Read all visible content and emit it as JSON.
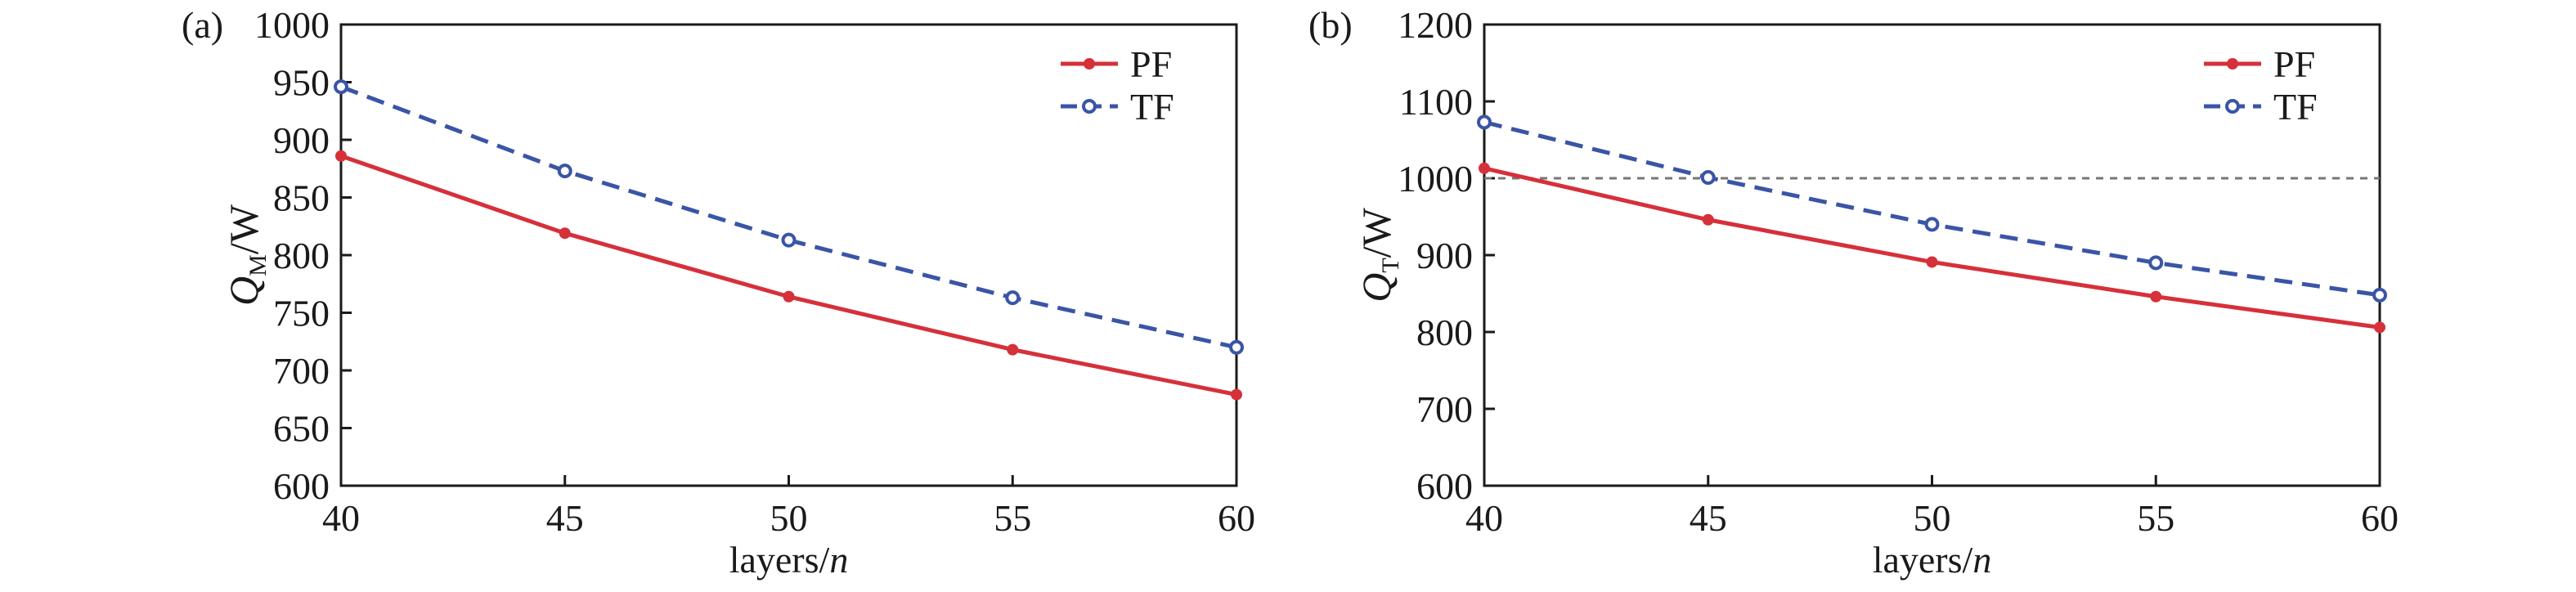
{
  "colors": {
    "pf": "#d6303a",
    "tf": "#3a55a6",
    "axis": "#1a1a1a",
    "reference_line": "#777777"
  },
  "chart_data": [
    {
      "type": "line",
      "panel_label": "(a)",
      "x": [
        40,
        45,
        50,
        55,
        60
      ],
      "xlim": [
        40,
        60
      ],
      "ylim": [
        600,
        1000
      ],
      "xticks": [
        "40",
        "45",
        "50",
        "55",
        "60"
      ],
      "yticks": [
        "600",
        "650",
        "700",
        "750",
        "800",
        "850",
        "900",
        "950",
        "1000"
      ],
      "xlabel": {
        "main": "layers/",
        "var": "n"
      },
      "ylabel": {
        "main": "Q",
        "sub": "M",
        "unit": "/W"
      },
      "legend_position": "top-right",
      "grid": false,
      "series": [
        {
          "name": "PF",
          "values": [
            886,
            819,
            764,
            718,
            679
          ],
          "style": "solid",
          "marker": "filled-circle"
        },
        {
          "name": "TF",
          "values": [
            946,
            873,
            813,
            763,
            720
          ],
          "style": "dashed",
          "marker": "open-circle"
        }
      ]
    },
    {
      "type": "line",
      "panel_label": "(b)",
      "x": [
        40,
        45,
        50,
        55,
        60
      ],
      "xlim": [
        40,
        60
      ],
      "ylim": [
        600,
        1200
      ],
      "xticks": [
        "40",
        "45",
        "50",
        "55",
        "60"
      ],
      "yticks": [
        "600",
        "700",
        "800",
        "900",
        "1000",
        "1100",
        "1200"
      ],
      "xlabel": {
        "main": "layers/",
        "var": "n"
      },
      "ylabel": {
        "main": "Q",
        "sub": "T",
        "unit": "/W"
      },
      "legend_position": "top-right",
      "grid": false,
      "reference_line": {
        "y": 1000,
        "style": "dashed"
      },
      "series": [
        {
          "name": "PF",
          "values": [
            1013,
            946,
            891,
            846,
            806
          ],
          "style": "solid",
          "marker": "filled-circle"
        },
        {
          "name": "TF",
          "values": [
            1073,
            1001,
            940,
            890,
            848
          ],
          "style": "dashed",
          "marker": "open-circle"
        }
      ]
    }
  ]
}
